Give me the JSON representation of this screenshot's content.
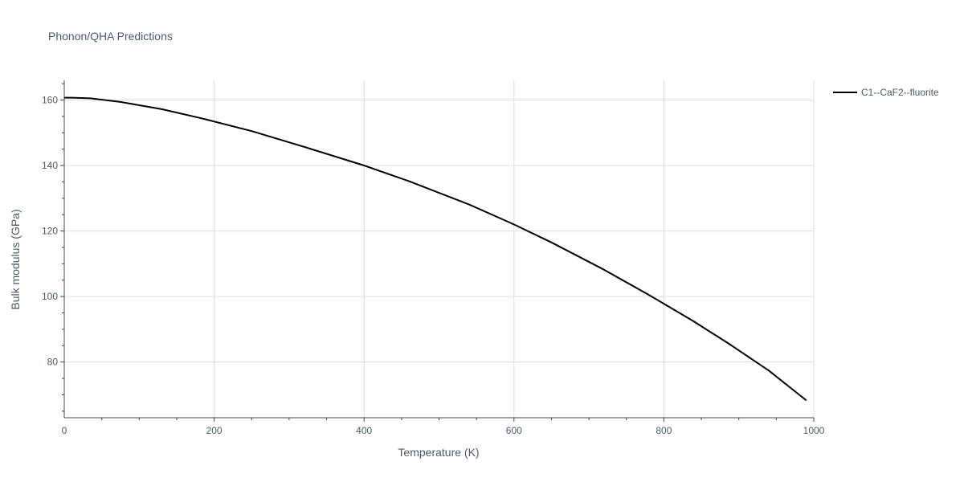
{
  "chart_data": {
    "type": "line",
    "title": "Phonon/QHA Predictions",
    "xlabel": "Temperature (K)",
    "ylabel": "Bulk modulus (GPa)",
    "xlim": [
      0,
      1000
    ],
    "ylim": [
      63,
      166
    ],
    "x_ticks": [
      0,
      200,
      400,
      600,
      800,
      1000
    ],
    "x_tick_labels": [
      "0",
      "200",
      "400",
      "600",
      "800",
      "1000"
    ],
    "y_ticks": [
      80,
      100,
      120,
      140,
      160
    ],
    "y_tick_labels": [
      "80",
      "100",
      "120",
      "140",
      "160"
    ],
    "grid": true,
    "legend_position": "top-right",
    "colors": {
      "series": "#000000",
      "grid": "#dddddd",
      "axis": "#444444",
      "text": "#4a5a6a"
    },
    "series": [
      {
        "name": "C1--CaF2--fluorite",
        "x": [
          0,
          10,
          35,
          75,
          130,
          185,
          250,
          320,
          400,
          460,
          540,
          600,
          650,
          720,
          780,
          840,
          890,
          940,
          990
        ],
        "y": [
          160.7,
          160.7,
          160.5,
          159.4,
          157.2,
          154.3,
          150.5,
          145.7,
          140.0,
          135.2,
          128.1,
          122.0,
          116.5,
          108.2,
          100.5,
          92.4,
          85.1,
          77.4,
          68.3
        ]
      }
    ]
  }
}
